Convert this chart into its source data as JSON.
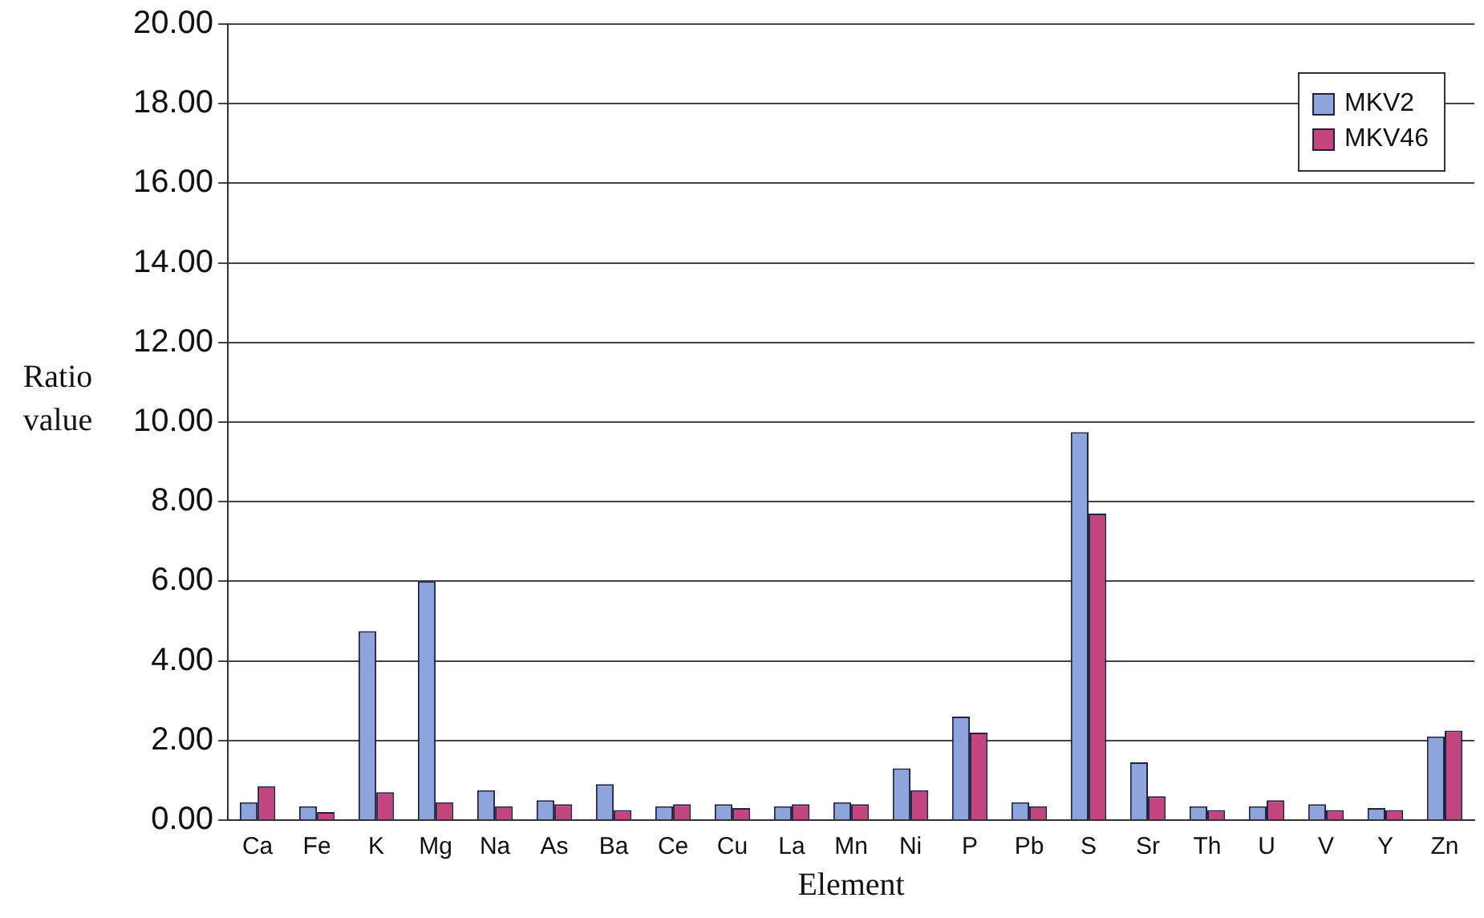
{
  "chart_data": {
    "type": "bar",
    "xlabel": "Element",
    "ylabel": "Ratio value",
    "categories": [
      "Ca",
      "Fe",
      "K",
      "Mg",
      "Na",
      "As",
      "Ba",
      "Ce",
      "Cu",
      "La",
      "Mn",
      "Ni",
      "P",
      "Pb",
      "S",
      "Sr",
      "Th",
      "U",
      "V",
      "Y",
      "Zn"
    ],
    "series": [
      {
        "name": "MKV2",
        "color": "#8ea4dc",
        "values": [
          0.45,
          0.35,
          4.75,
          6.0,
          0.75,
          0.5,
          0.9,
          0.35,
          0.4,
          0.35,
          0.45,
          1.3,
          2.6,
          0.45,
          9.75,
          1.45,
          0.35,
          0.35,
          0.4,
          0.3,
          2.1
        ]
      },
      {
        "name": "MKV46",
        "color": "#c2457f",
        "values": [
          0.85,
          0.2,
          0.7,
          0.45,
          0.35,
          0.4,
          0.25,
          0.4,
          0.3,
          0.4,
          0.4,
          0.75,
          2.2,
          0.35,
          7.7,
          0.6,
          0.25,
          0.5,
          0.25,
          0.25,
          2.25
        ]
      }
    ],
    "ylim": [
      0,
      20
    ],
    "yticks": [
      {
        "value": 0,
        "label": "0.00"
      },
      {
        "value": 2,
        "label": "2.00"
      },
      {
        "value": 4,
        "label": "4.00"
      },
      {
        "value": 6,
        "label": "6.00"
      },
      {
        "value": 8,
        "label": "8.00"
      },
      {
        "value": 10,
        "label": "10.00"
      },
      {
        "value": 12,
        "label": "12.00"
      },
      {
        "value": 14,
        "label": "14.00"
      },
      {
        "value": 16,
        "label": "16.00"
      },
      {
        "value": 18,
        "label": "18.00"
      },
      {
        "value": 20,
        "label": "20.00"
      }
    ],
    "grid": "y",
    "legend": "top right"
  }
}
